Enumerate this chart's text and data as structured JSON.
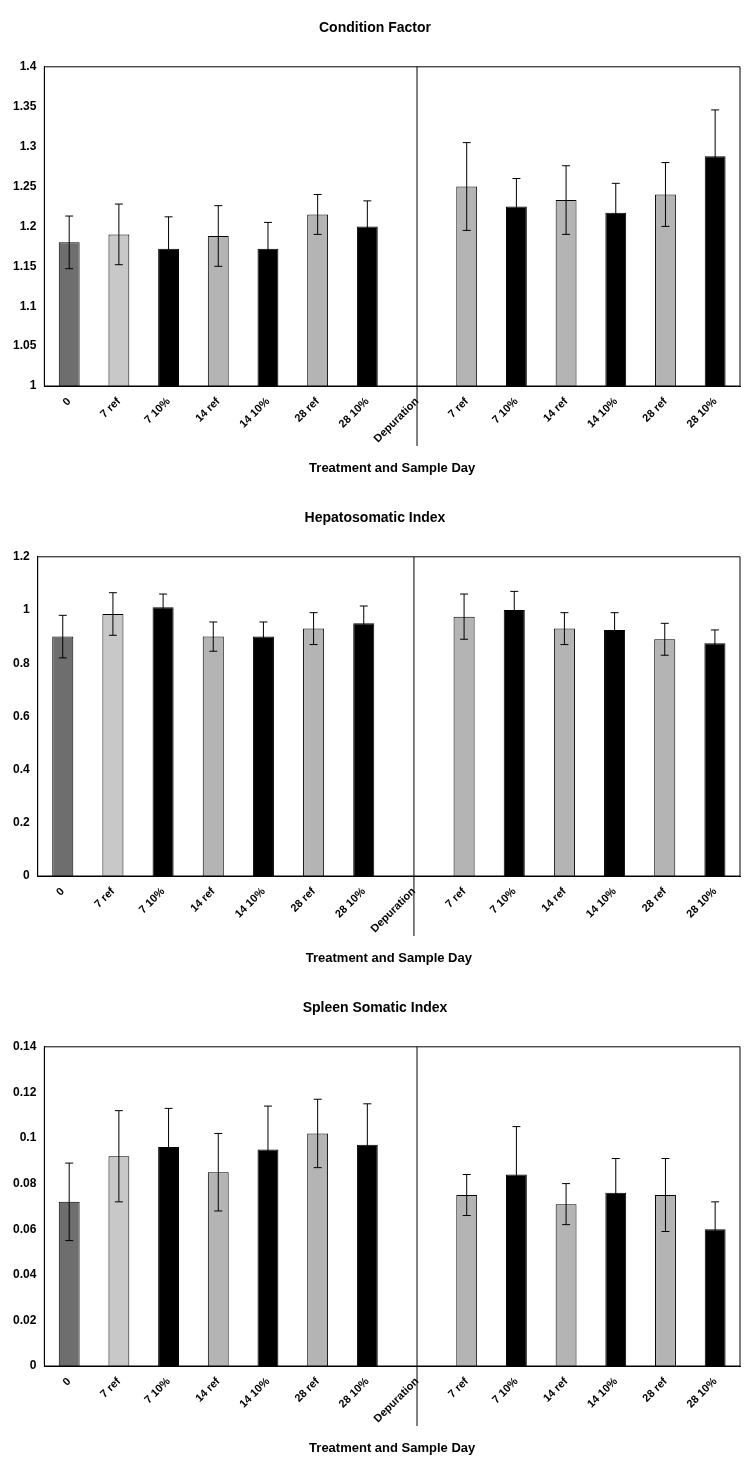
{
  "chart_data": [
    {
      "type": "bar",
      "title": "Condition Factor",
      "xlabel": "Treatment and Sample Day",
      "categories": [
        "0",
        "7 ref",
        "7 10%",
        "14 ref",
        "14 10%",
        "28 ref",
        "28 10%",
        "Depuration",
        "7 ref",
        "7 10%",
        "14 ref",
        "14 10%",
        "28 ref",
        "28 10%"
      ],
      "values": [
        1.18,
        1.19,
        1.172,
        1.188,
        1.172,
        1.215,
        1.2,
        null,
        1.25,
        1.225,
        1.233,
        1.217,
        1.24,
        1.288
      ],
      "errors": [
        0.033,
        0.038,
        0.04,
        0.038,
        0.033,
        0.025,
        0.032,
        null,
        0.055,
        0.035,
        0.043,
        0.037,
        0.04,
        0.058
      ],
      "colors": [
        "#6e6e6e",
        "#c8c8c8",
        "#000000",
        "#b4b4b4",
        "#000000",
        "#b4b4b4",
        "#000000",
        "#000000",
        "#b4b4b4",
        "#000000",
        "#b4b4b4",
        "#000000",
        "#b4b4b4",
        "#000000"
      ],
      "ylim": [
        1,
        1.4
      ],
      "yticks": [
        1,
        1.05,
        1.1,
        1.15,
        1.2,
        1.25,
        1.3,
        1.35,
        1.4
      ],
      "grid": false,
      "legend": false,
      "ref_lines": [
        {
          "axis": "x",
          "value": "Depuration",
          "color": "#000000"
        }
      ]
    },
    {
      "type": "bar",
      "title": "Hepatosomatic Index",
      "xlabel": "Treatment and Sample Day",
      "categories": [
        "0",
        "7 ref",
        "7 10%",
        "14 ref",
        "14 10%",
        "28 ref",
        "28 10%",
        "Depuration",
        "7 ref",
        "7 10%",
        "14 ref",
        "14 10%",
        "28 ref",
        "28 10%"
      ],
      "values": [
        0.9,
        0.985,
        1.01,
        0.9,
        0.9,
        0.93,
        0.95,
        null,
        0.975,
        1.0,
        0.93,
        0.925,
        0.89,
        0.875
      ],
      "errors": [
        0.08,
        0.08,
        0.05,
        0.055,
        0.055,
        0.06,
        0.065,
        null,
        0.085,
        0.07,
        0.06,
        0.065,
        0.06,
        0.05
      ],
      "colors": [
        "#6e6e6e",
        "#c8c8c8",
        "#000000",
        "#b4b4b4",
        "#000000",
        "#b4b4b4",
        "#000000",
        "#000000",
        "#b4b4b4",
        "#000000",
        "#b4b4b4",
        "#000000",
        "#b4b4b4",
        "#000000"
      ],
      "ylim": [
        0,
        1.2
      ],
      "yticks": [
        0,
        0.2,
        0.4,
        0.6,
        0.8,
        1,
        1.2
      ],
      "grid": false,
      "legend": false,
      "ref_lines": [
        {
          "axis": "x",
          "value": "Depuration",
          "color": "#000000"
        }
      ]
    },
    {
      "type": "bar",
      "title": "Spleen Somatic Index",
      "xlabel": "Treatment and Sample Day",
      "categories": [
        "0",
        "7 ref",
        "7 10%",
        "14 ref",
        "14 10%",
        "28 ref",
        "28 10%",
        "Depuration",
        "7 ref",
        "7 10%",
        "14 ref",
        "14 10%",
        "28 ref",
        "28 10%"
      ],
      "values": [
        0.072,
        0.092,
        0.096,
        0.085,
        0.095,
        0.102,
        0.097,
        null,
        0.075,
        0.084,
        0.071,
        0.076,
        0.075,
        0.06
      ],
      "errors": [
        0.017,
        0.02,
        0.017,
        0.017,
        0.019,
        0.015,
        0.018,
        null,
        0.009,
        0.021,
        0.009,
        0.015,
        0.016,
        0.012
      ],
      "colors": [
        "#6e6e6e",
        "#c8c8c8",
        "#000000",
        "#b4b4b4",
        "#000000",
        "#b4b4b4",
        "#000000",
        "#000000",
        "#b4b4b4",
        "#000000",
        "#b4b4b4",
        "#000000",
        "#b4b4b4",
        "#000000"
      ],
      "ylim": [
        0,
        0.14
      ],
      "yticks": [
        0,
        0.02,
        0.04,
        0.06,
        0.08,
        0.1,
        0.12,
        0.14
      ],
      "grid": false,
      "legend": false,
      "ref_lines": [
        {
          "axis": "x",
          "value": "Depuration",
          "color": "#000000"
        }
      ]
    }
  ]
}
